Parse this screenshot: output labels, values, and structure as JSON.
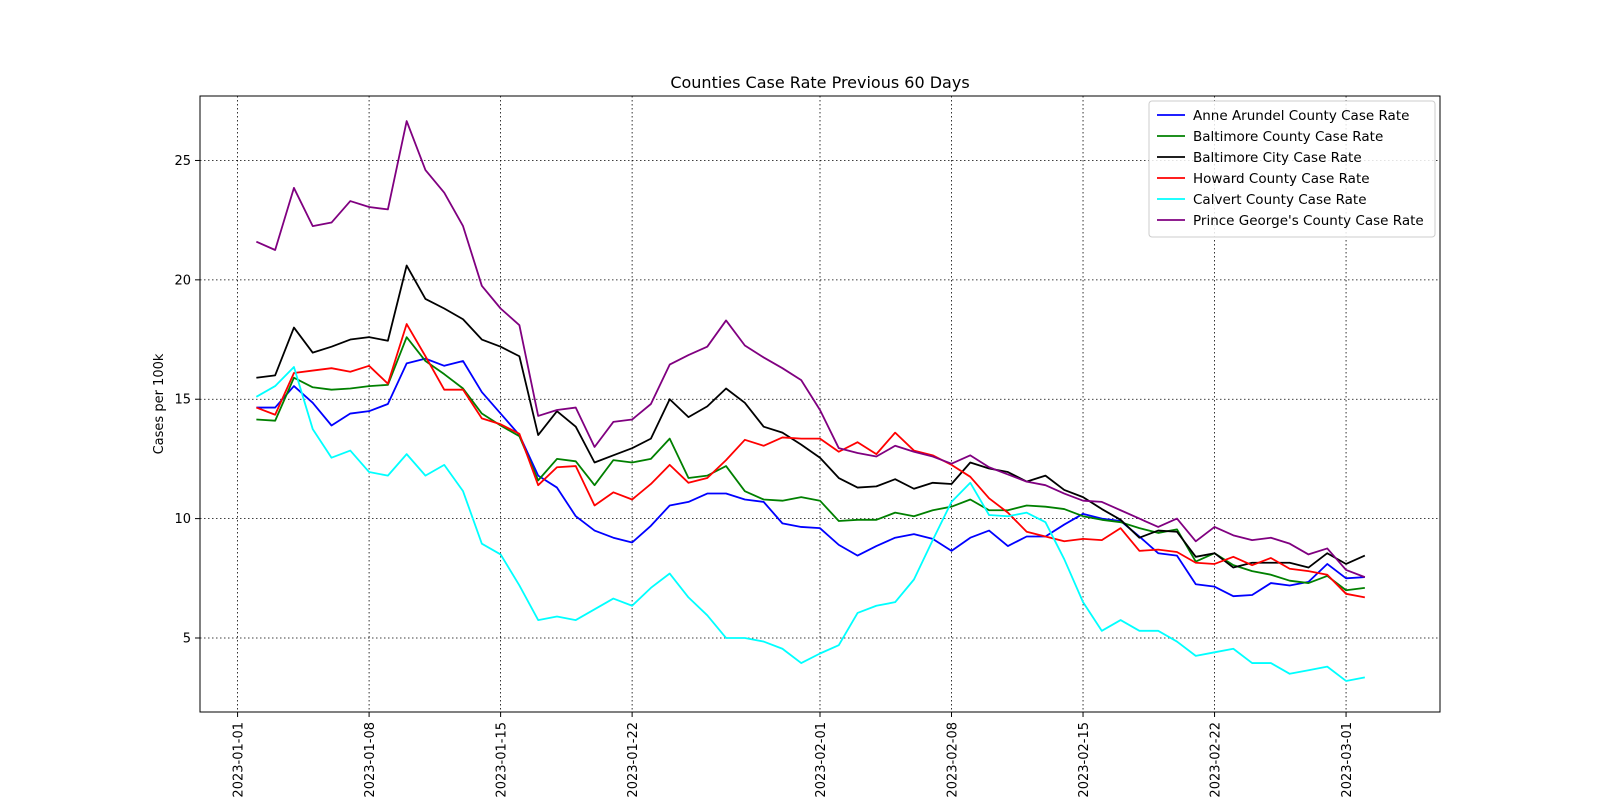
{
  "chart_data": {
    "type": "line",
    "title": "Counties Case Rate Previous 60 Days",
    "xlabel": "",
    "ylabel": "Cases per 100k",
    "x_start": "2023-01-02",
    "x_step_days": 1,
    "xlim": [
      "2022-12-30",
      "2023-03-06"
    ],
    "ylim": [
      1.9,
      27.7
    ],
    "x_ticks": [
      "2023-01-01",
      "2023-01-08",
      "2023-01-15",
      "2023-01-22",
      "2023-02-01",
      "2023-02-08",
      "2023-02-15",
      "2023-02-22",
      "2023-03-01"
    ],
    "y_ticks": [
      5,
      10,
      15,
      20,
      25
    ],
    "grid": true,
    "legend_position": "top-right",
    "series": [
      {
        "name": "Anne Arundel County Case Rate",
        "color": "#0000ff",
        "values": [
          14.65,
          14.65,
          15.55,
          14.85,
          13.9,
          14.4,
          14.5,
          14.8,
          16.5,
          16.7,
          16.4,
          16.6,
          15.3,
          14.4,
          13.5,
          11.8,
          11.3,
          10.1,
          9.5,
          9.2,
          9.0,
          9.7,
          10.55,
          10.7,
          11.05,
          11.05,
          10.8,
          10.7,
          9.8,
          9.65,
          9.6,
          8.9,
          8.45,
          8.85,
          9.2,
          9.35,
          9.15,
          8.65,
          9.2,
          9.5,
          8.85,
          9.25,
          9.25,
          9.75,
          10.2,
          10.0,
          9.9,
          9.25,
          8.55,
          8.45,
          7.25,
          7.15,
          6.75,
          6.8,
          7.3,
          7.2,
          7.35,
          8.1,
          7.5,
          7.55
        ]
      },
      {
        "name": "Baltimore County Case Rate",
        "color": "#008000",
        "values": [
          14.15,
          14.1,
          15.9,
          15.5,
          15.4,
          15.45,
          15.55,
          15.6,
          17.6,
          16.6,
          16.05,
          15.45,
          14.4,
          13.9,
          13.45,
          11.6,
          12.5,
          12.4,
          11.4,
          12.45,
          12.35,
          12.5,
          13.35,
          11.7,
          11.8,
          12.2,
          11.15,
          10.8,
          10.75,
          10.9,
          10.75,
          9.9,
          9.95,
          9.95,
          10.25,
          10.1,
          10.35,
          10.5,
          10.8,
          10.35,
          10.35,
          10.55,
          10.5,
          10.4,
          10.1,
          9.95,
          9.85,
          9.6,
          9.4,
          9.55,
          8.2,
          8.55,
          8.05,
          7.8,
          7.65,
          7.4,
          7.3,
          7.6,
          7.0,
          7.1
        ]
      },
      {
        "name": "Baltimore City Case Rate",
        "color": "#000000",
        "values": [
          15.9,
          16.0,
          18.0,
          16.95,
          17.2,
          17.5,
          17.6,
          17.45,
          20.6,
          19.2,
          18.8,
          18.35,
          17.5,
          17.2,
          16.8,
          13.5,
          14.5,
          13.85,
          12.35,
          12.65,
          12.95,
          13.35,
          15.0,
          14.25,
          14.7,
          15.45,
          14.85,
          13.85,
          13.6,
          13.1,
          12.55,
          11.7,
          11.3,
          11.35,
          11.65,
          11.25,
          11.5,
          11.45,
          12.35,
          12.1,
          11.95,
          11.55,
          11.8,
          11.2,
          10.9,
          10.4,
          9.95,
          9.2,
          9.5,
          9.45,
          8.4,
          8.55,
          7.95,
          8.15,
          8.15,
          8.15,
          7.95,
          8.55,
          8.1,
          8.45
        ]
      },
      {
        "name": "Howard County Case Rate",
        "color": "#ff0000",
        "values": [
          14.65,
          14.35,
          16.1,
          16.2,
          16.3,
          16.15,
          16.4,
          15.65,
          18.15,
          16.8,
          15.4,
          15.4,
          14.2,
          13.95,
          13.55,
          11.4,
          12.15,
          12.2,
          10.55,
          11.1,
          10.8,
          11.45,
          12.25,
          11.5,
          11.7,
          12.45,
          13.3,
          13.05,
          13.4,
          13.35,
          13.35,
          12.8,
          13.2,
          12.7,
          13.6,
          12.85,
          12.65,
          12.25,
          11.75,
          10.85,
          10.25,
          9.45,
          9.25,
          9.05,
          9.15,
          9.1,
          9.6,
          8.65,
          8.7,
          8.6,
          8.15,
          8.1,
          8.4,
          8.05,
          8.35,
          7.9,
          7.8,
          7.65,
          6.85,
          6.7
        ]
      },
      {
        "name": "Calvert County Case Rate",
        "color": "#00ffff",
        "values": [
          15.1,
          15.55,
          16.35,
          13.75,
          12.55,
          12.85,
          11.95,
          11.8,
          12.7,
          11.8,
          12.25,
          11.15,
          8.95,
          8.5,
          7.2,
          5.75,
          5.9,
          5.75,
          6.2,
          6.65,
          6.35,
          7.1,
          7.7,
          6.7,
          5.95,
          5.0,
          5.0,
          4.85,
          4.55,
          3.95,
          4.35,
          4.7,
          6.05,
          6.35,
          6.5,
          7.45,
          9.1,
          10.7,
          11.5,
          10.15,
          10.1,
          10.25,
          9.85,
          8.3,
          6.5,
          5.3,
          5.75,
          5.3,
          5.3,
          4.85,
          4.25,
          4.4,
          4.55,
          3.95,
          3.95,
          3.5,
          3.65,
          3.8,
          3.2,
          3.35
        ]
      },
      {
        "name": "Prince George's County Case Rate",
        "color": "#800080",
        "values": [
          21.6,
          21.25,
          23.85,
          22.25,
          22.4,
          23.3,
          23.05,
          22.95,
          26.65,
          24.6,
          23.65,
          22.25,
          19.75,
          18.8,
          18.1,
          14.3,
          14.55,
          14.65,
          13.0,
          14.05,
          14.15,
          14.8,
          16.45,
          16.85,
          17.2,
          18.3,
          17.25,
          16.75,
          16.3,
          15.8,
          14.55,
          12.95,
          12.75,
          12.6,
          13.05,
          12.8,
          12.6,
          12.3,
          12.65,
          12.15,
          11.85,
          11.55,
          11.4,
          11.05,
          10.75,
          10.7,
          10.35,
          10.0,
          9.65,
          10.0,
          9.05,
          9.65,
          9.3,
          9.1,
          9.2,
          8.95,
          8.5,
          8.75,
          7.85,
          7.55
        ]
      }
    ]
  }
}
